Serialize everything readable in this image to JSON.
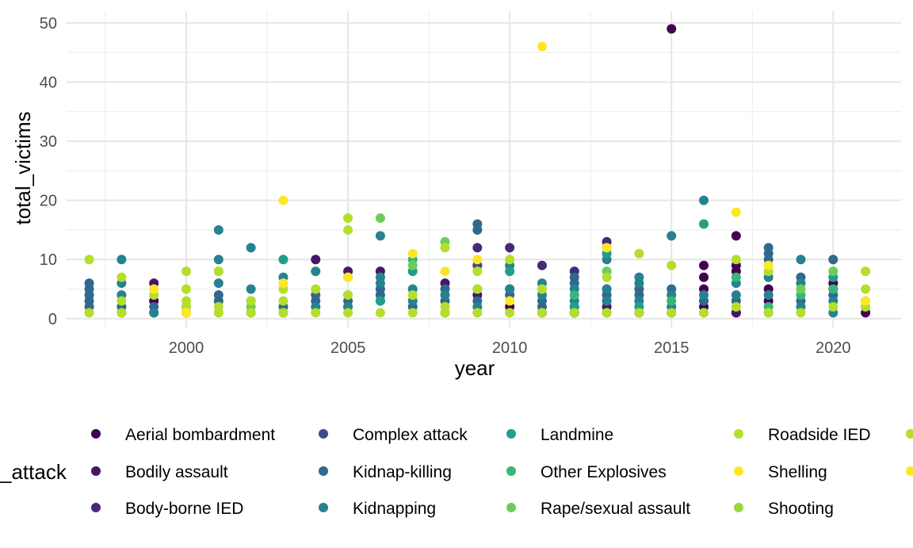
{
  "chart_data": {
    "type": "scatter",
    "xlabel": "year",
    "ylabel": "total_victims",
    "xlim": [
      1996.3,
      2022.1
    ],
    "ylim": [
      -1.5,
      52
    ],
    "x_ticks": [
      2000,
      2005,
      2010,
      2015,
      2020
    ],
    "y_ticks": [
      0,
      10,
      20,
      30,
      40,
      50
    ],
    "grid": true,
    "legend_position": "bottom",
    "legend_title": "_attack",
    "series": [
      {
        "name": "Aerial bombardment",
        "color": "#440154",
        "points": [
          [
            1999,
            3
          ],
          [
            2015,
            49
          ],
          [
            2016,
            9
          ],
          [
            2016,
            7
          ],
          [
            2016,
            5
          ],
          [
            2016,
            2
          ],
          [
            2017,
            14
          ],
          [
            2017,
            9
          ],
          [
            2017,
            8
          ],
          [
            2017,
            1
          ],
          [
            2018,
            5
          ],
          [
            2018,
            3
          ],
          [
            2020,
            6
          ],
          [
            2020,
            5
          ],
          [
            2021,
            1
          ],
          [
            2010,
            2
          ],
          [
            2012,
            1
          ],
          [
            2013,
            1
          ],
          [
            2014,
            1
          ]
        ]
      },
      {
        "name": "Bodily assault",
        "color": "#481668",
        "points": [
          [
            1999,
            6
          ],
          [
            2004,
            10
          ],
          [
            2005,
            8
          ],
          [
            2006,
            8
          ],
          [
            2008,
            6
          ],
          [
            2009,
            4
          ],
          [
            2011,
            1
          ],
          [
            2013,
            2
          ],
          [
            2015,
            1
          ],
          [
            2017,
            1
          ],
          [
            2012,
            2
          ]
        ]
      },
      {
        "name": "Body-borne IED",
        "color": "#482878",
        "points": [
          [
            2009,
            12
          ],
          [
            2010,
            12
          ],
          [
            2011,
            9
          ],
          [
            2012,
            8
          ],
          [
            2013,
            13
          ],
          [
            2009,
            9
          ],
          [
            2013,
            3
          ]
        ]
      },
      {
        "name": "Complex attack",
        "color": "#3E4A89",
        "points": [
          [
            2009,
            9
          ],
          [
            2013,
            12
          ],
          [
            2010,
            5
          ],
          [
            2016,
            3
          ],
          [
            2013,
            4
          ],
          [
            2005,
            2
          ],
          [
            2012,
            1
          ]
        ]
      },
      {
        "name": "Kidnap-killing",
        "color": "#31688E",
        "points": [
          [
            1997,
            6
          ],
          [
            1997,
            5
          ],
          [
            1997,
            4
          ],
          [
            1997,
            3
          ],
          [
            1997,
            2
          ],
          [
            1998,
            1
          ],
          [
            1998,
            2
          ],
          [
            1999,
            2
          ],
          [
            1999,
            1
          ],
          [
            2000,
            1
          ],
          [
            2001,
            4
          ],
          [
            2001,
            3
          ],
          [
            2002,
            1
          ],
          [
            2002,
            3
          ],
          [
            2003,
            2
          ],
          [
            2004,
            3
          ],
          [
            2004,
            4
          ],
          [
            2005,
            3
          ],
          [
            2006,
            5
          ],
          [
            2006,
            4
          ],
          [
            2007,
            2
          ],
          [
            2008,
            3
          ],
          [
            2008,
            5
          ],
          [
            2009,
            16
          ],
          [
            2009,
            15
          ],
          [
            2009,
            3
          ],
          [
            2010,
            4
          ],
          [
            2011,
            2
          ],
          [
            2011,
            3
          ],
          [
            2012,
            7
          ],
          [
            2012,
            6
          ],
          [
            2013,
            5
          ],
          [
            2013,
            4
          ],
          [
            2014,
            4
          ],
          [
            2014,
            5
          ],
          [
            2015,
            5
          ],
          [
            2016,
            3
          ],
          [
            2017,
            3
          ],
          [
            2018,
            12
          ],
          [
            2018,
            11
          ],
          [
            2018,
            10
          ],
          [
            2019,
            7
          ],
          [
            2019,
            3
          ],
          [
            2020,
            10
          ],
          [
            2020,
            4
          ]
        ]
      },
      {
        "name": "Kidnapping",
        "color": "#26828E",
        "points": [
          [
            1998,
            10
          ],
          [
            1998,
            6
          ],
          [
            1998,
            4
          ],
          [
            1999,
            1
          ],
          [
            2000,
            2
          ],
          [
            2001,
            15
          ],
          [
            2001,
            10
          ],
          [
            2001,
            6
          ],
          [
            2002,
            12
          ],
          [
            2002,
            5
          ],
          [
            2003,
            7
          ],
          [
            2004,
            8
          ],
          [
            2004,
            2
          ],
          [
            2005,
            4
          ],
          [
            2005,
            2
          ],
          [
            2006,
            14
          ],
          [
            2006,
            7
          ],
          [
            2006,
            6
          ],
          [
            2006,
            3
          ],
          [
            2007,
            5
          ],
          [
            2007,
            3
          ],
          [
            2008,
            4
          ],
          [
            2009,
            5
          ],
          [
            2009,
            2
          ],
          [
            2010,
            9
          ],
          [
            2010,
            5
          ],
          [
            2011,
            6
          ],
          [
            2011,
            4
          ],
          [
            2012,
            5
          ],
          [
            2012,
            3
          ],
          [
            2013,
            10
          ],
          [
            2013,
            5
          ],
          [
            2013,
            3
          ],
          [
            2014,
            7
          ],
          [
            2014,
            6
          ],
          [
            2014,
            3
          ],
          [
            2015,
            14
          ],
          [
            2015,
            2
          ],
          [
            2016,
            20
          ],
          [
            2016,
            4
          ],
          [
            2017,
            6
          ],
          [
            2017,
            4
          ],
          [
            2018,
            7
          ],
          [
            2018,
            4
          ],
          [
            2019,
            10
          ],
          [
            2019,
            6
          ],
          [
            2019,
            2
          ],
          [
            2020,
            3
          ],
          [
            2020,
            1
          ],
          [
            2021,
            2
          ],
          [
            2015,
            4
          ]
        ]
      },
      {
        "name": "Landmine",
        "color": "#1F9E89",
        "points": [
          [
            2003,
            10
          ],
          [
            2007,
            8
          ],
          [
            2010,
            8
          ],
          [
            2013,
            11
          ],
          [
            2016,
            16
          ],
          [
            2006,
            3
          ],
          [
            2008,
            1
          ],
          [
            2012,
            2
          ],
          [
            2018,
            1
          ],
          [
            2020,
            7
          ],
          [
            2014,
            2
          ]
        ]
      },
      {
        "name": "Other Explosives",
        "color": "#35B779",
        "points": [
          [
            2007,
            10
          ],
          [
            2018,
            2
          ],
          [
            2020,
            5
          ],
          [
            2015,
            3
          ],
          [
            2019,
            4
          ],
          [
            2012,
            4
          ],
          [
            2003,
            1
          ],
          [
            2017,
            7
          ]
        ]
      },
      {
        "name": "Rape/sexual assault",
        "color": "#6DCD59",
        "points": [
          [
            2006,
            17
          ],
          [
            2008,
            13
          ],
          [
            2007,
            9
          ],
          [
            2019,
            5
          ],
          [
            2020,
            8
          ],
          [
            2013,
            8
          ],
          [
            2021,
            3
          ],
          [
            2001,
            8
          ],
          [
            2002,
            2
          ],
          [
            2016,
            1
          ]
        ]
      },
      {
        "name": "Roadside IED",
        "color": "#B4DE2C",
        "points": [
          [
            1997,
            10
          ],
          [
            1997,
            1
          ],
          [
            1998,
            7
          ],
          [
            1998,
            3
          ],
          [
            1998,
            1
          ],
          [
            1999,
            4
          ],
          [
            2000,
            8
          ],
          [
            2000,
            5
          ],
          [
            2000,
            3
          ],
          [
            2000,
            2
          ],
          [
            2000,
            1
          ],
          [
            2001,
            8
          ],
          [
            2001,
            2
          ],
          [
            2001,
            1
          ],
          [
            2002,
            3
          ],
          [
            2002,
            1
          ],
          [
            2003,
            5
          ],
          [
            2003,
            3
          ],
          [
            2003,
            1
          ],
          [
            2004,
            5
          ],
          [
            2004,
            1
          ],
          [
            2005,
            15
          ],
          [
            2005,
            17
          ],
          [
            2005,
            7
          ],
          [
            2005,
            4
          ],
          [
            2005,
            1
          ],
          [
            2006,
            1
          ],
          [
            2007,
            4
          ],
          [
            2007,
            1
          ],
          [
            2008,
            12
          ],
          [
            2008,
            2
          ],
          [
            2008,
            1
          ],
          [
            2009,
            8
          ],
          [
            2009,
            5
          ],
          [
            2009,
            1
          ],
          [
            2010,
            10
          ],
          [
            2010,
            1
          ],
          [
            2011,
            5
          ],
          [
            2011,
            1
          ],
          [
            2012,
            1
          ],
          [
            2013,
            7
          ],
          [
            2013,
            1
          ],
          [
            2014,
            11
          ],
          [
            2014,
            1
          ],
          [
            2015,
            9
          ],
          [
            2015,
            1
          ],
          [
            2016,
            1
          ],
          [
            2017,
            10
          ],
          [
            2017,
            2
          ],
          [
            2018,
            8
          ],
          [
            2018,
            1
          ],
          [
            2019,
            1
          ],
          [
            2020,
            2
          ],
          [
            2021,
            8
          ],
          [
            2021,
            5
          ],
          [
            2021,
            2
          ]
        ]
      },
      {
        "name": "Shelling",
        "color": "#FDE725",
        "points": [
          [
            2003,
            20
          ],
          [
            2011,
            46
          ],
          [
            2017,
            18
          ],
          [
            2005,
            7
          ],
          [
            2007,
            11
          ],
          [
            2008,
            8
          ],
          [
            2013,
            12
          ],
          [
            2018,
            9
          ],
          [
            2009,
            10
          ],
          [
            2010,
            3
          ],
          [
            2021,
            3
          ],
          [
            2003,
            6
          ],
          [
            1999,
            5
          ],
          [
            2000,
            1
          ]
        ]
      },
      {
        "name": "Shooting",
        "color": "#95D840",
        "points": []
      },
      {
        "name": "",
        "color": "#B4DE2C",
        "points": []
      },
      {
        "name": "",
        "color": "#FDE725",
        "points": []
      }
    ]
  }
}
